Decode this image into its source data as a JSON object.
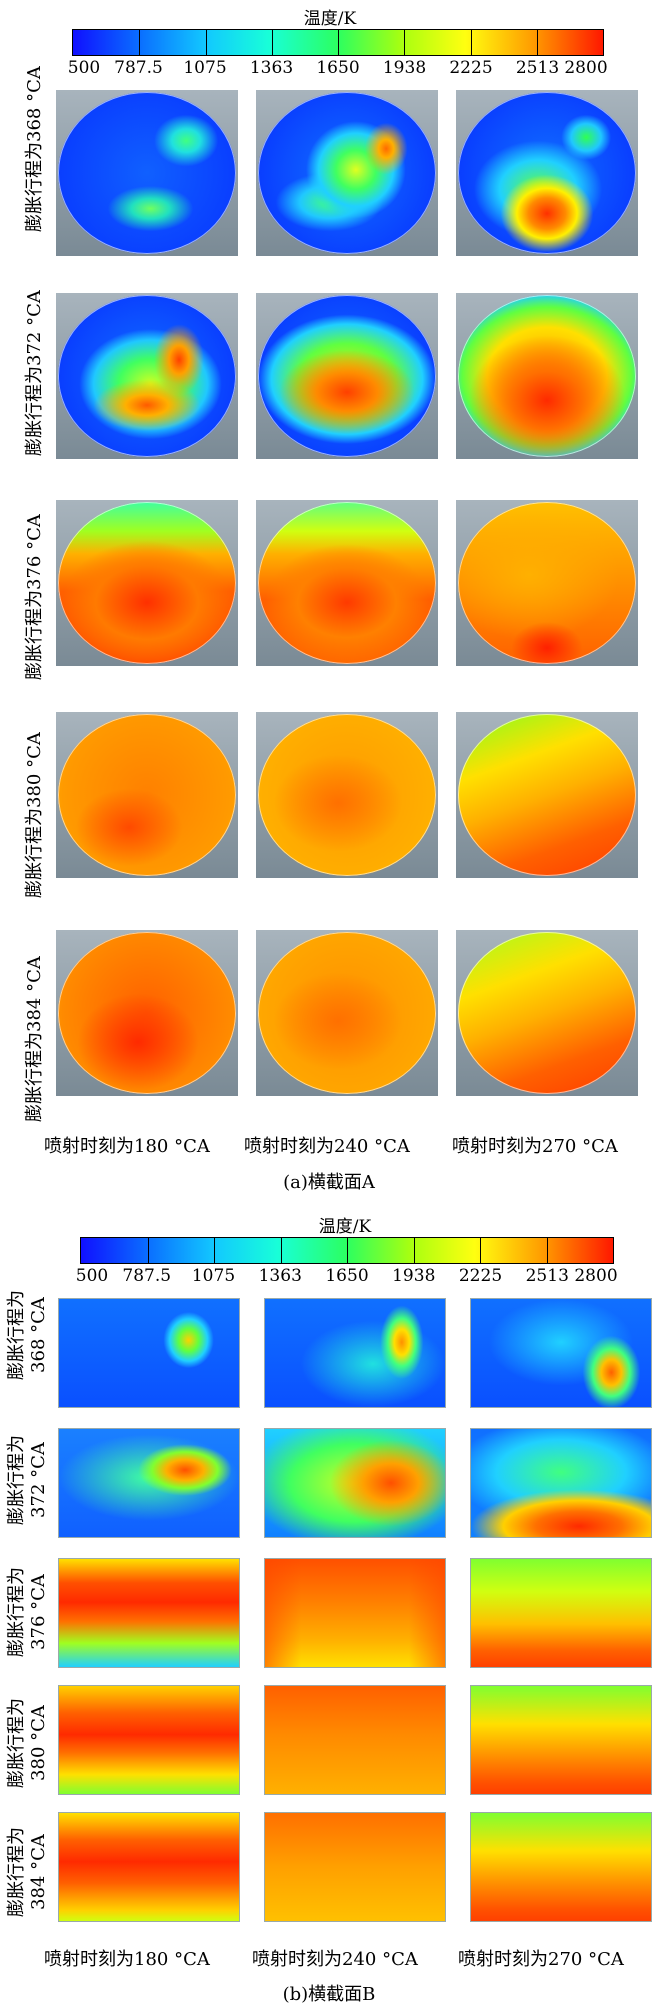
{
  "figure_a": {
    "colorbar": {
      "title": "温度/K",
      "ticks": [
        "500",
        "787.5",
        "1075",
        "1363",
        "1650",
        "1938",
        "2225",
        "2513",
        "2800"
      ]
    },
    "rows": [
      "膨胀行程为368 °CA",
      "膨胀行程为372 °CA",
      "膨胀行程为376 °CA",
      "膨胀行程为380 °CA",
      "膨胀行程为384 °CA"
    ],
    "columns": [
      "喷射时刻为180 °CA",
      "喷射时刻为240 °CA",
      "喷射时刻为270 °CA"
    ],
    "caption": "(a)横截面A"
  },
  "figure_b": {
    "colorbar": {
      "title": "温度/K",
      "ticks": [
        "500",
        "787.5",
        "1075",
        "1363",
        "1650",
        "1938",
        "2225",
        "2513",
        "2800"
      ]
    },
    "rows": [
      {
        "line1": "膨胀行程为",
        "line2": "368 °CA"
      },
      {
        "line1": "膨胀行程为",
        "line2": "372 °CA"
      },
      {
        "line1": "膨胀行程为",
        "line2": "376 °CA"
      },
      {
        "line1": "膨胀行程为",
        "line2": "380 °CA"
      },
      {
        "line1": "膨胀行程为",
        "line2": "384 °CA"
      }
    ],
    "columns": [
      "喷射时刻为180 °CA",
      "喷射时刻为240 °CA",
      "喷射时刻为270 °CA"
    ],
    "caption": "(b)横截面B"
  },
  "colormap": [
    "#0000ff",
    "#0077ff",
    "#00ccff",
    "#00ffcc",
    "#33ff33",
    "#99ff00",
    "#ffff00",
    "#ff9900",
    "#ff0000"
  ]
}
